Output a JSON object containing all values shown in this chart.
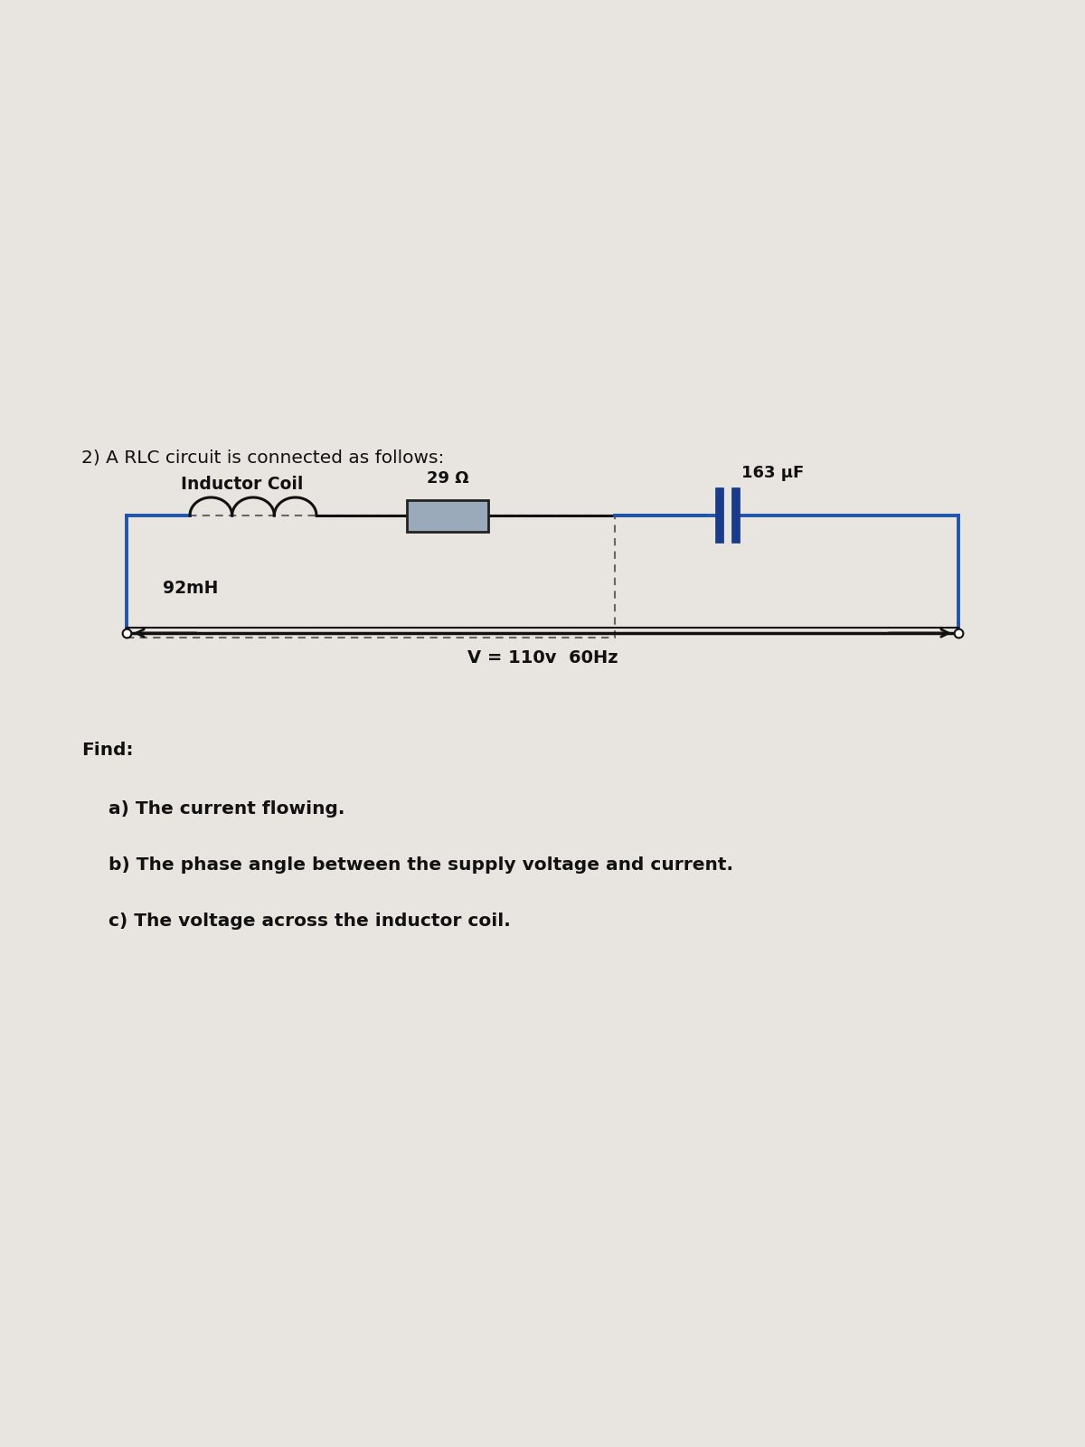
{
  "bg_top_color": "#c8c4be",
  "bg_bottom_color": "#d0ccc6",
  "paper_color": "#e8e4df",
  "title": "2) A RLC circuit is connected as follows:",
  "inductor_label": "Inductor Coil",
  "inductor_value": "92mH",
  "resistor_value": "29 Ω",
  "capacitor_value": "163 μF",
  "voltage_label": "V = 110v  60Hz",
  "find_label": "Find:",
  "find_items": [
    "a) The current flowing.",
    "b) The phase angle between the supply voltage and current.",
    "c) The voltage across the inductor coil."
  ],
  "circuit_color": "#2255aa",
  "dashed_box_color": "#666666",
  "resistor_fill": "#9aaabb",
  "resistor_edge": "#222222",
  "capacitor_color": "#1a3a8a",
  "line_color": "#111111",
  "text_color": "#111111",
  "arrow_color": "#111111"
}
